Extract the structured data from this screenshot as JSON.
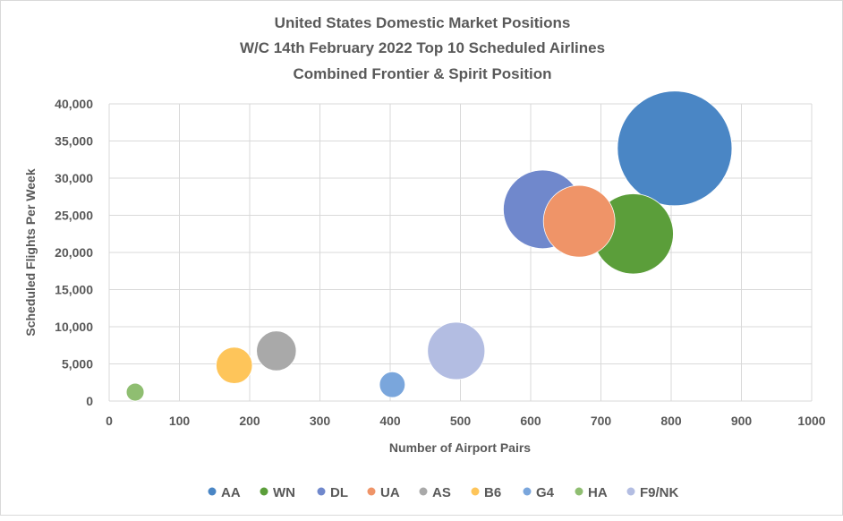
{
  "chart_data": {
    "type": "bubble",
    "title": [
      "United States Domestic Market Positions",
      "W/C 14th February 2022 Top 10 Scheduled Airlines",
      "Combined Frontier & Spirit Position"
    ],
    "xlabel": "Number of Airport Pairs",
    "ylabel": "Scheduled Flights Per Week",
    "xlim": [
      0,
      1000
    ],
    "ylim": [
      0,
      40000
    ],
    "xticks": [
      "0",
      "100",
      "200",
      "300",
      "400",
      "500",
      "600",
      "700",
      "800",
      "900",
      "1000"
    ],
    "yticks": [
      "0",
      "5,000",
      "10,000",
      "15,000",
      "20,000",
      "25,000",
      "30,000",
      "35,000",
      "40,000"
    ],
    "grid": true,
    "legend_position": "bottom",
    "size_note_relative": true,
    "series": [
      {
        "name": "AA",
        "x": 805,
        "y": 34000,
        "size": 100,
        "color": "#4a86c5"
      },
      {
        "name": "WN",
        "x": 746,
        "y": 22500,
        "size": 49,
        "color": "#5b9e3a"
      },
      {
        "name": "DL",
        "x": 617,
        "y": 25800,
        "size": 47,
        "color": "#7088cc"
      },
      {
        "name": "UA",
        "x": 669,
        "y": 24200,
        "size": 39,
        "color": "#ef9468"
      },
      {
        "name": "AS",
        "x": 238,
        "y": 6750,
        "size": 12,
        "color": "#a9a9a9"
      },
      {
        "name": "B6",
        "x": 178,
        "y": 4800,
        "size": 10,
        "color": "#fec55a"
      },
      {
        "name": "G4",
        "x": 403,
        "y": 2200,
        "size": 5,
        "color": "#7aa6dc"
      },
      {
        "name": "HA",
        "x": 37,
        "y": 1200,
        "size": 2.4,
        "color": "#8fbe71"
      },
      {
        "name": "F9/NK",
        "x": 494,
        "y": 6750,
        "size": 25,
        "color": "#b3bde2"
      }
    ]
  }
}
